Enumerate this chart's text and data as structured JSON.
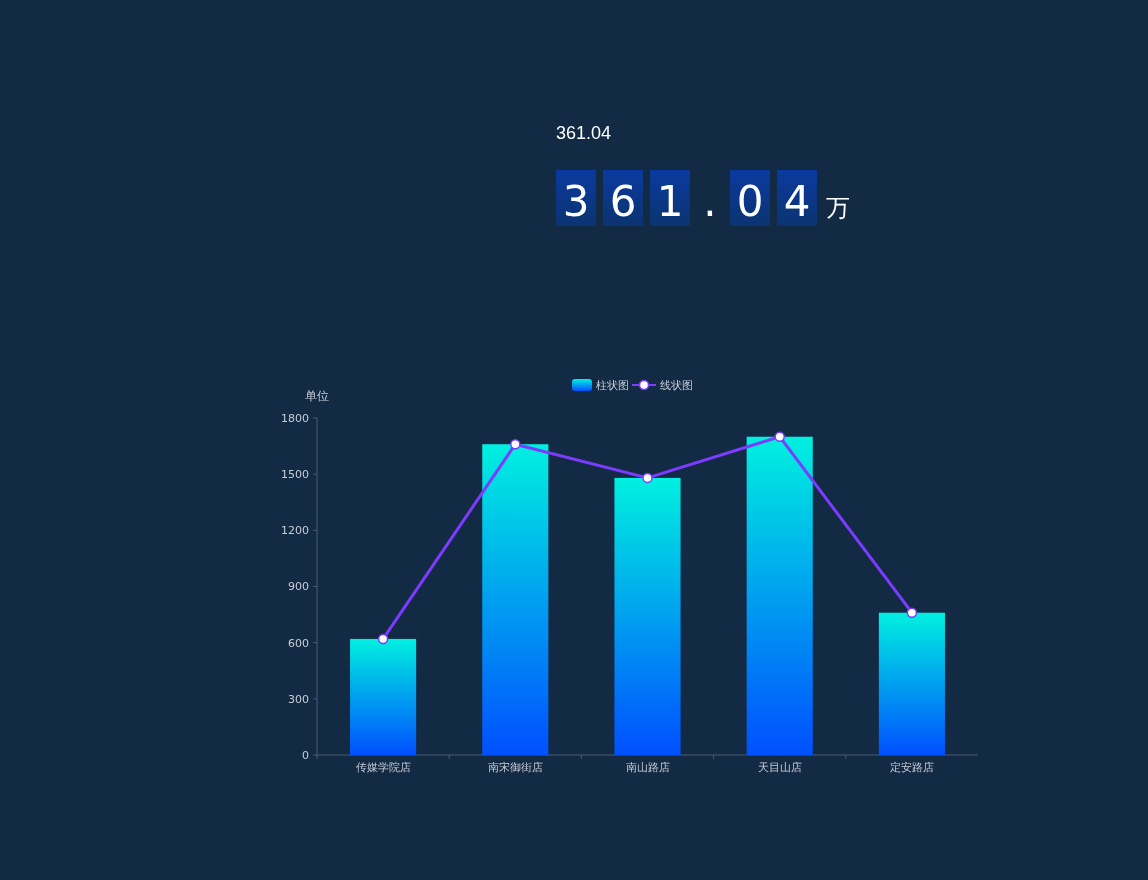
{
  "chart_data": [
    {
      "type": "other",
      "title": "361.04",
      "annotations": [
        "361.04",
        "万"
      ]
    },
    {
      "type": "bar",
      "ylabel": "单位",
      "categories": [
        "传媒学院店",
        "南宋御街店",
        "南山路店",
        "天目山店",
        "定安路店"
      ],
      "ylim": [
        0,
        1800
      ],
      "yticks": [
        0,
        300,
        600,
        900,
        1200,
        1500,
        1800
      ],
      "legend": "top",
      "marker": "circle",
      "grid": false,
      "series": [
        {
          "name": "柱状图",
          "type": "bar",
          "color": "#00f0e0",
          "values": [
            620,
            1660,
            1480,
            1700,
            760
          ]
        },
        {
          "name": "线状图",
          "type": "line",
          "color": "#7b3cff",
          "values": [
            620,
            1660,
            1480,
            1700,
            760
          ]
        }
      ]
    }
  ]
}
